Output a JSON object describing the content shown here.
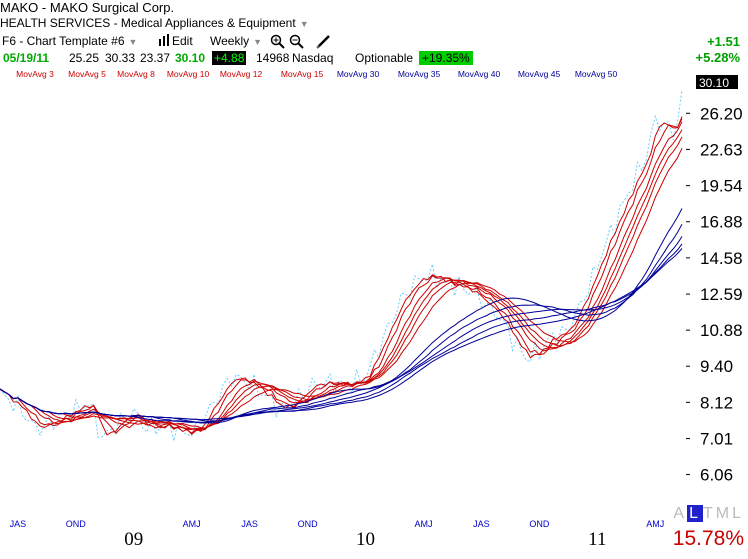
{
  "header": {
    "title": "MAKO - MAKO Surgical Corp.",
    "sector": "HEALTH SERVICES - Medical Appliances & Equipment"
  },
  "toolbar": {
    "template": "F6 - Chart Template #6",
    "edit": "Edit",
    "period": "Weekly"
  },
  "quote": {
    "date": "05/19/11",
    "open": "25.25",
    "high": "30.33",
    "low": "23.37",
    "close": "30.10",
    "change_box": "+4.88",
    "volume": "14968",
    "exchange": "Nasdaq",
    "options": "Optionable",
    "pct_box": "+19.35%",
    "day_change": "+1.51",
    "day_pct": "+5.28%"
  },
  "colors": {
    "short_ma": "#cc0000",
    "long_ma": "#000099",
    "price": "#66ccff",
    "up": "#00cc00"
  },
  "footer": {
    "percent": "15.78%",
    "scale_letters": [
      "A",
      "L",
      "T",
      "M",
      "L"
    ],
    "selected_scale": "L"
  },
  "chart_data": {
    "type": "line",
    "ylim": [
      5.6,
      29.5
    ],
    "log_scale": true,
    "current_price": "30.10",
    "y_ticks": [
      "26.20",
      "22.63",
      "19.54",
      "16.88",
      "14.58",
      "12.59",
      "10.88",
      "9.40",
      "8.12",
      "7.01",
      "6.06"
    ],
    "y_tick_values": [
      26.2,
      22.63,
      19.54,
      16.88,
      14.58,
      12.59,
      10.88,
      9.4,
      8.12,
      7.01,
      6.06
    ],
    "x_quarter_labels": [
      "JAS",
      "OND",
      "AMJ",
      "JAS",
      "OND",
      "AMJ",
      "JAS",
      "OND",
      "AMJ"
    ],
    "x_year_labels": [
      "09",
      "10",
      "11"
    ],
    "x_label_weeks": [
      4,
      17,
      43,
      56,
      69,
      95,
      108,
      121,
      147
    ],
    "x_year_weeks": [
      30,
      82,
      134
    ],
    "weeks_total": 154,
    "legend": [
      {
        "label": "MovAvg 3",
        "color": "#cc0000"
      },
      {
        "label": "MovAvg 5",
        "color": "#cc0000"
      },
      {
        "label": "MovAvg 8",
        "color": "#cc0000"
      },
      {
        "label": "MovAvg 10",
        "color": "#cc0000"
      },
      {
        "label": "MovAvg 12",
        "color": "#cc0000"
      },
      {
        "label": "MovAvg 15",
        "color": "#cc0000"
      },
      {
        "label": "MovAvg 30",
        "color": "#000099"
      },
      {
        "label": "MovAvg 35",
        "color": "#000099"
      },
      {
        "label": "MovAvg 40",
        "color": "#000099"
      },
      {
        "label": "MovAvg 45",
        "color": "#000099"
      },
      {
        "label": "MovAvg 50",
        "color": "#000099"
      }
    ],
    "price_anchors": [
      [
        0,
        8.4
      ],
      [
        4,
        8.0
      ],
      [
        8,
        7.3
      ],
      [
        12,
        7.5
      ],
      [
        16,
        7.8
      ],
      [
        20,
        8.1
      ],
      [
        23,
        7.0
      ],
      [
        26,
        7.4
      ],
      [
        30,
        7.8
      ],
      [
        33,
        7.3
      ],
      [
        37,
        7.4
      ],
      [
        41,
        7.2
      ],
      [
        44,
        7.2
      ],
      [
        48,
        8.1
      ],
      [
        52,
        9.0
      ],
      [
        56,
        8.8
      ],
      [
        60,
        8.3
      ],
      [
        63,
        7.9
      ],
      [
        66,
        8.1
      ],
      [
        70,
        8.7
      ],
      [
        74,
        8.8
      ],
      [
        78,
        8.7
      ],
      [
        82,
        9.0
      ],
      [
        86,
        10.5
      ],
      [
        90,
        12.3
      ],
      [
        94,
        13.4
      ],
      [
        97,
        13.6
      ],
      [
        100,
        13.2
      ],
      [
        103,
        13.0
      ],
      [
        106,
        12.7
      ],
      [
        109,
        12.1
      ],
      [
        112,
        11.5
      ],
      [
        115,
        10.5
      ],
      [
        118,
        9.7
      ],
      [
        121,
        10.0
      ],
      [
        124,
        10.6
      ],
      [
        127,
        10.8
      ],
      [
        130,
        11.9
      ],
      [
        133,
        13.5
      ],
      [
        136,
        15.5
      ],
      [
        139,
        17.5
      ],
      [
        142,
        19.8
      ],
      [
        145,
        22.0
      ],
      [
        147,
        25.5
      ],
      [
        149,
        25.0
      ],
      [
        151,
        24.3
      ],
      [
        152,
        25.2
      ],
      [
        153,
        28.3
      ]
    ],
    "ma_periods": [
      3,
      5,
      8,
      10,
      12,
      15,
      30,
      35,
      40,
      45,
      50
    ]
  }
}
